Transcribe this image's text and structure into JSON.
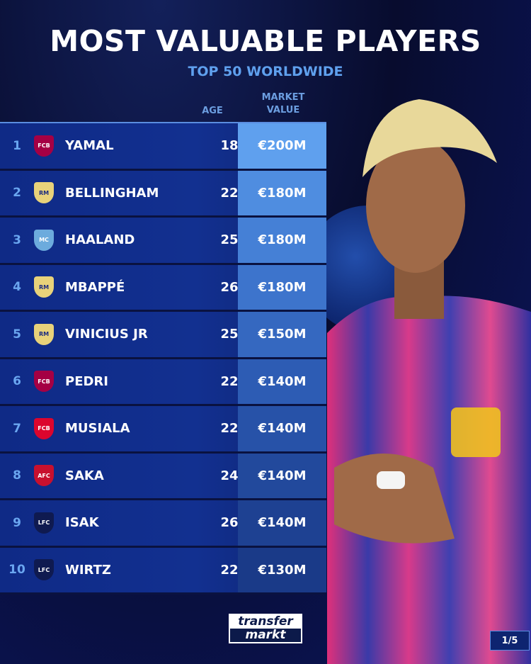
{
  "header": {
    "title": "MOST VALUABLE PLAYERS",
    "subtitle": "TOP 50 WORLDWIDE"
  },
  "columns": {
    "age": "AGE",
    "market_value_1": "MARKET",
    "market_value_2": "VALUE"
  },
  "players": [
    {
      "rank": "1",
      "club": "Barcelona",
      "crest": "FCB",
      "name": "YAMAL",
      "age": "18",
      "value": "€200M"
    },
    {
      "rank": "2",
      "club": "Real Madrid",
      "crest": "RM",
      "name": "BELLINGHAM",
      "age": "22",
      "value": "€180M"
    },
    {
      "rank": "3",
      "club": "Manchester City",
      "crest": "MC",
      "name": "HAALAND",
      "age": "25",
      "value": "€180M"
    },
    {
      "rank": "4",
      "club": "Real Madrid",
      "crest": "RM",
      "name": "MBAPPÉ",
      "age": "26",
      "value": "€180M"
    },
    {
      "rank": "5",
      "club": "Real Madrid",
      "crest": "RM",
      "name": "VINICIUS JR",
      "age": "25",
      "value": "€150M"
    },
    {
      "rank": "6",
      "club": "Barcelona",
      "crest": "FCB",
      "name": "PEDRI",
      "age": "22",
      "value": "€140M"
    },
    {
      "rank": "7",
      "club": "Bayern Munich",
      "crest": "FCB",
      "name": "MUSIALA",
      "age": "22",
      "value": "€140M"
    },
    {
      "rank": "8",
      "club": "Arsenal",
      "crest": "AFC",
      "name": "SAKA",
      "age": "24",
      "value": "€140M"
    },
    {
      "rank": "9",
      "club": "Liverpool",
      "crest": "LFC",
      "name": "ISAK",
      "age": "26",
      "value": "€140M"
    },
    {
      "rank": "10",
      "club": "Liverpool",
      "crest": "LFC",
      "name": "WIRTZ",
      "age": "22",
      "value": "€130M"
    }
  ],
  "crest_colors": {
    "Barcelona": "#a50044",
    "Real Madrid": "#e8d27a",
    "Manchester City": "#6cabdd",
    "Bayern Munich": "#dc052d",
    "Arsenal": "#c8102e",
    "Liverpool": "#0f1a50"
  },
  "value_colors": [
    "#5fa0ee",
    "#4f8de0",
    "#4580d6",
    "#3d74cc",
    "#3568c0",
    "#2d5cb4",
    "#2752a8",
    "#22499c",
    "#1e4192",
    "#1a3a88"
  ],
  "footer": {
    "logo_line1": "transfer",
    "logo_line2": "markt",
    "page": "1/5"
  }
}
